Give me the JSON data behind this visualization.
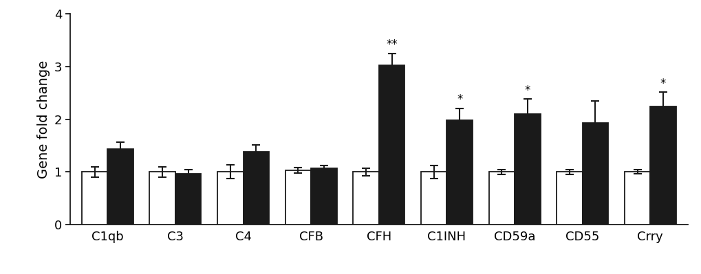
{
  "categories": [
    "C1qb",
    "C3",
    "C4",
    "CFB",
    "CFH",
    "C1INH",
    "CD59a",
    "CD55",
    "Crry"
  ],
  "white_values": [
    1.0,
    1.0,
    1.0,
    1.03,
    1.0,
    1.0,
    1.0,
    1.0,
    1.0
  ],
  "black_values": [
    1.44,
    0.96,
    1.38,
    1.07,
    3.02,
    1.98,
    2.1,
    1.93,
    2.24
  ],
  "white_errors": [
    0.1,
    0.1,
    0.13,
    0.05,
    0.07,
    0.12,
    0.05,
    0.05,
    0.04
  ],
  "black_errors": [
    0.12,
    0.09,
    0.13,
    0.05,
    0.22,
    0.22,
    0.28,
    0.42,
    0.27
  ],
  "significance": [
    "",
    "",
    "",
    "",
    "**",
    "*",
    "*",
    "",
    "*"
  ],
  "ylabel": "Gene fold change",
  "ylim": [
    0,
    4
  ],
  "yticks": [
    0,
    1,
    2,
    3,
    4
  ],
  "bar_width": 0.38,
  "white_color": "#ffffff",
  "black_color": "#1a1a1a",
  "edge_color": "#1a1a1a",
  "background_color": "#ffffff",
  "sig_fontsize": 12,
  "ylabel_fontsize": 14,
  "tick_fontsize": 13,
  "cap_size": 4,
  "elinewidth": 1.5,
  "bar_linewidth": 1.3
}
